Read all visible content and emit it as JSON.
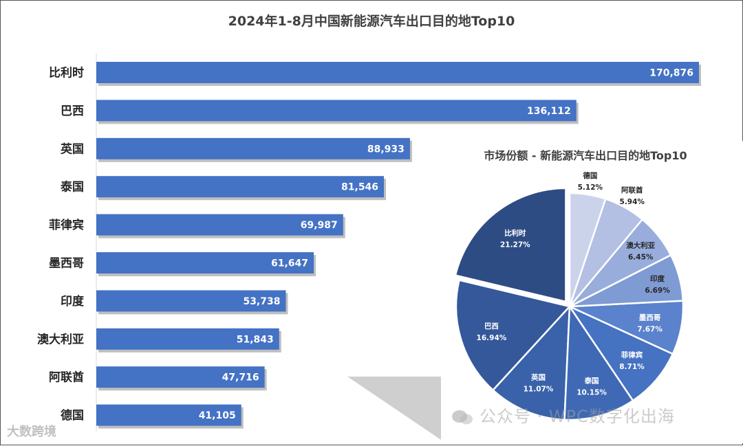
{
  "title": "2024年1-8月中国新能源汽车出口目的地Top10",
  "chart_data": [
    {
      "type": "bar",
      "orientation": "horizontal",
      "title": "2024年1-8月中国新能源汽车出口目的地Top10",
      "categories": [
        "比利时",
        "巴西",
        "英国",
        "泰国",
        "菲律宾",
        "墨西哥",
        "印度",
        "澳大利亚",
        "阿联酋",
        "德国"
      ],
      "values": [
        170876,
        136112,
        88933,
        81546,
        69987,
        61647,
        53738,
        51843,
        47716,
        41105
      ],
      "value_labels": [
        "170,876",
        "136,112",
        "88,933",
        "81,546",
        "69,987",
        "61,647",
        "53,738",
        "51,843",
        "47,716",
        "41,105"
      ],
      "xlim": [
        0,
        180000
      ],
      "color": "#4472C4"
    },
    {
      "type": "pie",
      "title": "市场份额 - 新能源汽车出口目的地Top10",
      "slices": [
        {
          "label": "比利时",
          "pct": "21.27%",
          "value": 21.27,
          "color": "#2E4C84",
          "text_color": "#ffffff"
        },
        {
          "label": "巴西",
          "pct": "16.94%",
          "value": 16.94,
          "color": "#34589A",
          "text_color": "#ffffff"
        },
        {
          "label": "英国",
          "pct": "11.07%",
          "value": 11.07,
          "color": "#3A62AA",
          "text_color": "#ffffff"
        },
        {
          "label": "泰国",
          "pct": "10.15%",
          "value": 10.15,
          "color": "#3F69B5",
          "text_color": "#ffffff"
        },
        {
          "label": "菲律宾",
          "pct": "8.71%",
          "value": 8.71,
          "color": "#4672C2",
          "text_color": "#ffffff"
        },
        {
          "label": "墨西哥",
          "pct": "7.67%",
          "value": 7.67,
          "color": "#5B82CC",
          "text_color": "#ffffff"
        },
        {
          "label": "印度",
          "pct": "6.69%",
          "value": 6.69,
          "color": "#7F9BD4",
          "text_color": "#262626"
        },
        {
          "label": "澳大利亚",
          "pct": "6.45%",
          "value": 6.45,
          "color": "#98ADDC",
          "text_color": "#262626"
        },
        {
          "label": "阿联酋",
          "pct": "5.94%",
          "value": 5.94,
          "color": "#B3C0E3",
          "text_color": "#262626"
        },
        {
          "label": "德国",
          "pct": "5.12%",
          "value": 5.12,
          "color": "#CBD3EB",
          "text_color": "#262626"
        }
      ]
    }
  ],
  "watermark": "公众号 · WPC数字化出海",
  "brand": "大数跨境"
}
